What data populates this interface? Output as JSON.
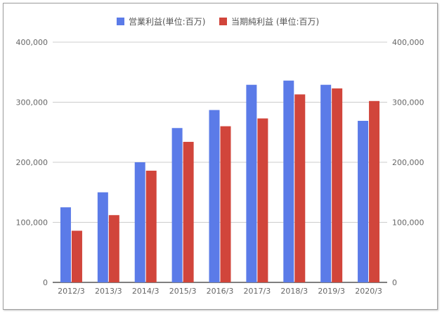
{
  "chart_data": {
    "type": "bar",
    "categories": [
      "2012/3",
      "2013/3",
      "2014/3",
      "2015/3",
      "2016/3",
      "2017/3",
      "2018/3",
      "2019/3",
      "2020/3"
    ],
    "series": [
      {
        "name": "営業利益(単位:百万)",
        "color": "#5b7be8",
        "values": [
          125000,
          150000,
          200000,
          257000,
          287000,
          329000,
          336000,
          329000,
          269000
        ]
      },
      {
        "name": "当期純利益 (単位:百万)",
        "color": "#d1453b",
        "values": [
          86000,
          112000,
          186000,
          234000,
          260000,
          273000,
          313000,
          323000,
          302000
        ]
      }
    ],
    "ylim": [
      0,
      400000
    ],
    "yticks": [
      0,
      100000,
      200000,
      300000,
      400000
    ],
    "ytick_labels": [
      "0",
      "100,000",
      "200,000",
      "300,000",
      "400,000"
    ],
    "dual_axis_labels": true,
    "grid": true,
    "legend_position": "top-center"
  }
}
